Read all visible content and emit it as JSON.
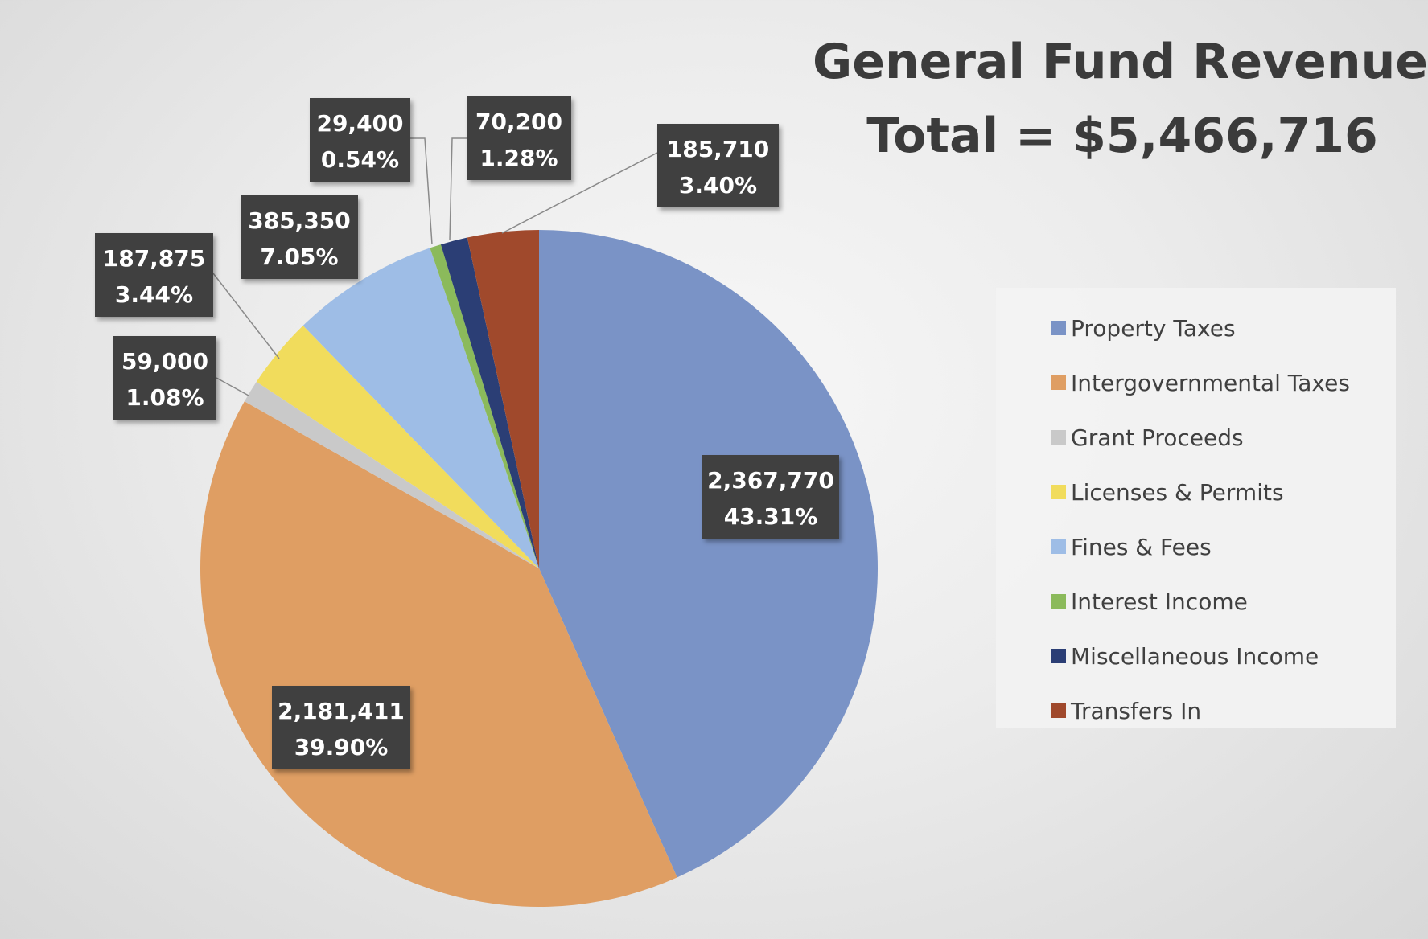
{
  "title": {
    "line1": "General Fund Revenues",
    "line2": "Total = $5,466,716"
  },
  "chart_data": {
    "type": "pie",
    "title": "General Fund Revenues",
    "subtitle": "Total = $5,466,716",
    "legend_position": "right",
    "slices": [
      {
        "name": "Property Taxes",
        "value": 2367770,
        "value_label": "2,367,770",
        "percent_label": "43.31%",
        "color": "#7a93c6"
      },
      {
        "name": "Intergovernmental Taxes",
        "value": 2181411,
        "value_label": "2,181,411",
        "percent_label": "39.90%",
        "color": "#df9e63"
      },
      {
        "name": "Grant Proceeds",
        "value": 59000,
        "value_label": "59,000",
        "percent_label": "1.08%",
        "color": "#c9c9c9"
      },
      {
        "name": "Licenses & Permits",
        "value": 187875,
        "value_label": "187,875",
        "percent_label": "3.44%",
        "color": "#f1dc5c"
      },
      {
        "name": "Fines & Fees",
        "value": 385350,
        "value_label": "385,350",
        "percent_label": "7.05%",
        "color": "#9ebde6"
      },
      {
        "name": "Interest Income",
        "value": 29400,
        "value_label": "29,400",
        "percent_label": "0.54%",
        "color": "#8bba5b"
      },
      {
        "name": "Miscellaneous Income",
        "value": 70200,
        "value_label": "70,200",
        "percent_label": "1.28%",
        "color": "#2b3e75"
      },
      {
        "name": "Transfers In",
        "value": 185710,
        "value_label": "185,710",
        "percent_label": "3.40%",
        "color": "#a0492c"
      }
    ]
  }
}
